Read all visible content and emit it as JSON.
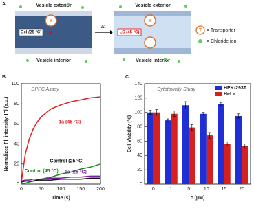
{
  "panel_a": {
    "label": "A.",
    "left": {
      "top": "Vesicle exterior",
      "bottom": "Vesicle interior",
      "state": "Gel (25 °C)",
      "transporter": "T"
    },
    "arrow": "Δt",
    "right": {
      "top": "Vesicle exterior",
      "bottom": "Vesicle interior",
      "state": "LC (45 °C)",
      "transporter": "T"
    },
    "legend": [
      {
        "symbol": "T",
        "text": "= Transporter"
      },
      {
        "text": "= Chloride ion"
      }
    ]
  },
  "chart_data": [
    {
      "type": "line",
      "panel_label": "B.",
      "title": "DPPC Assay",
      "x_label": "Time (s)",
      "y_label": "Normalized Fl. intensity, IFl (a.u.)",
      "xlim": [
        0,
        200
      ],
      "xticks": [
        0,
        50,
        100,
        150,
        200
      ],
      "ylim": [
        0,
        100
      ],
      "yticks": [
        0,
        20,
        40,
        60,
        80,
        100
      ],
      "x": [
        0,
        10,
        20,
        30,
        40,
        50,
        75,
        100,
        125,
        150,
        175,
        200
      ],
      "series": [
        {
          "name": "1a (45 °C)",
          "color": "#e02020",
          "values": [
            2,
            30,
            45,
            55,
            62,
            67,
            75,
            79,
            82,
            84,
            86,
            87
          ]
        },
        {
          "name": "Control (45 °C)",
          "color": "#1a8a1a",
          "values": [
            0,
            1,
            2,
            3,
            4,
            5,
            7,
            10,
            12,
            15,
            17,
            20
          ]
        },
        {
          "name": "Control (25 °C)",
          "color": "#111111",
          "values": [
            2,
            3,
            3,
            3,
            4,
            4,
            4,
            5,
            5,
            5,
            6,
            6
          ]
        },
        {
          "name": "1a (25 °C)",
          "color": "#7a1fa2",
          "values": [
            3,
            4,
            4,
            5,
            5,
            5,
            6,
            6,
            7,
            7,
            8,
            8
          ]
        }
      ]
    },
    {
      "type": "bar",
      "panel_label": "C.",
      "title": "Cytotoxicity Study",
      "x_label": "c (μM)",
      "y_label": "Cell Viability (%)",
      "categories": [
        "0",
        "1",
        "5",
        "10",
        "15",
        "20"
      ],
      "ylim": [
        0,
        140
      ],
      "yticks": [
        0,
        20,
        40,
        60,
        80,
        100,
        120,
        140
      ],
      "legend": "top-right",
      "series": [
        {
          "name": "HEK-293T",
          "color": "#1f2fd6",
          "values": [
            100,
            89,
            110,
            98,
            112,
            95
          ],
          "errors": [
            3,
            2,
            5,
            2,
            2,
            3
          ]
        },
        {
          "name": "HeLa",
          "color": "#d61f1f",
          "values": [
            100,
            98,
            79,
            68,
            56,
            53
          ],
          "errors": [
            4,
            4,
            4,
            4,
            3,
            3
          ]
        }
      ]
    }
  ]
}
